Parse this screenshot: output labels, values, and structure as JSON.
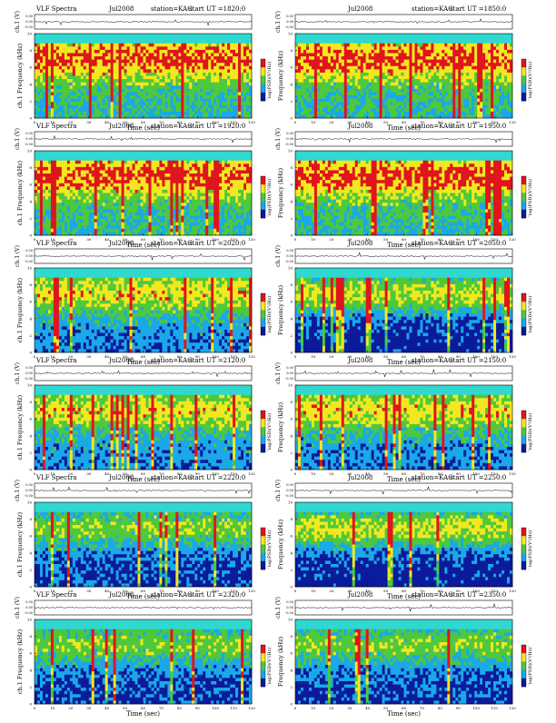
{
  "document": {
    "colors": {
      "cmap_low": "#0a1a9a",
      "cmap_lowmid": "#1aa8e8",
      "cmap_mid": "#4ec83c",
      "cmap_midhigh": "#f2e81e",
      "cmap_high": "#e0141c",
      "background_band": "#2fd8d0"
    }
  },
  "chart_data": [
    {
      "type": "heatmap",
      "title": "VLF Spectra",
      "date": "Jul2008",
      "station": "station=KAG",
      "start": "start UT =1820:0",
      "ch_label": "ch.1 (V)",
      "ch_ticks": [
        "0.50",
        "0.00",
        "-0.50"
      ],
      "ylabel": "ch.1 Frequency (kHz)",
      "yticks": [
        "0",
        "2",
        "4",
        "6",
        "8",
        "10"
      ],
      "xlabel": "Time (sec)",
      "xticks": [
        "0",
        "10",
        "20",
        "30",
        "40",
        "50",
        "60",
        "70",
        "80",
        "90",
        "100",
        "110",
        "120"
      ],
      "cbar_label": "log(PSD)(V²/Hz)",
      "cbar_ticks": [
        "-",
        "-"
      ],
      "xlim": [
        0,
        120
      ],
      "ylim": [
        0,
        10
      ],
      "intensity": "high"
    },
    {
      "type": "heatmap",
      "title": "",
      "date": "Jul2008",
      "station": "station=KAG",
      "start": "start UT =1850:0",
      "ch_label": "ch.1 (V)",
      "ch_ticks": [
        "0.50",
        "0.00",
        "-0.50"
      ],
      "ylabel": "Frequency (kHz)",
      "yticks": [
        "0",
        "2",
        "4",
        "6",
        "8",
        "10"
      ],
      "xlabel": "Time (sec)",
      "xticks": [
        "0",
        "10",
        "20",
        "30",
        "40",
        "50",
        "60",
        "70",
        "80",
        "90",
        "100",
        "110",
        "120"
      ],
      "cbar_label": "log(PSD)(V²/Hz)",
      "cbar_ticks": [
        "-",
        "-"
      ],
      "xlim": [
        0,
        120
      ],
      "ylim": [
        0,
        10
      ],
      "intensity": "high"
    },
    {
      "type": "heatmap",
      "title": "VLF Spectra",
      "date": "Jul2008",
      "station": "station=KAG",
      "start": "start UT =1920:0",
      "ch_label": "ch.1 (V)",
      "ch_ticks": [
        "0.50",
        "0.00",
        "-0.50"
      ],
      "ylabel": "ch.1 Frequency (kHz)",
      "yticks": [
        "0",
        "2",
        "4",
        "6",
        "8",
        "10"
      ],
      "xlabel": "Time (sec)",
      "xticks": [
        "0",
        "10",
        "20",
        "30",
        "40",
        "50",
        "60",
        "70",
        "80",
        "90",
        "100",
        "110",
        "120"
      ],
      "cbar_label": "log(PSD)(V²/Hz)",
      "cbar_ticks": [
        "-",
        "-"
      ],
      "xlim": [
        0,
        120
      ],
      "ylim": [
        0,
        10
      ],
      "intensity": "high"
    },
    {
      "type": "heatmap",
      "title": "",
      "date": "Jul2008",
      "station": "station=KAG",
      "start": "start UT =1950:0",
      "ch_label": "ch.1 (V)",
      "ch_ticks": [
        "0.50",
        "0.00",
        "-0.50"
      ],
      "ylabel": "Frequency (kHz)",
      "yticks": [
        "0",
        "2",
        "4",
        "6",
        "8",
        "10"
      ],
      "xlabel": "Time (sec)",
      "xticks": [
        "0",
        "10",
        "20",
        "30",
        "40",
        "50",
        "60",
        "70",
        "80",
        "90",
        "100",
        "110",
        "120"
      ],
      "cbar_label": "log(PSD)(V²/Hz)",
      "cbar_ticks": [
        "-",
        "-"
      ],
      "xlim": [
        0,
        120
      ],
      "ylim": [
        0,
        10
      ],
      "intensity": "high"
    },
    {
      "type": "heatmap",
      "title": "VLF Spectra",
      "date": "Jul2008",
      "station": "station=KAG",
      "start": "start UT =2020:0",
      "ch_label": "ch.1 (V)",
      "ch_ticks": [
        "0.50",
        "0.00",
        "-0.50"
      ],
      "ylabel": "ch.1 Frequency (kHz)",
      "yticks": [
        "0",
        "2",
        "4",
        "6",
        "8",
        "10"
      ],
      "xlabel": "Time (sec)",
      "xticks": [
        "0",
        "10",
        "20",
        "30",
        "40",
        "50",
        "60",
        "70",
        "80",
        "90",
        "100",
        "110",
        "120"
      ],
      "cbar_label": "log(PSD)(V²/Hz)",
      "cbar_ticks": [
        "-",
        "-"
      ],
      "xlim": [
        0,
        120
      ],
      "ylim": [
        0,
        10
      ],
      "intensity": "medium"
    },
    {
      "type": "heatmap",
      "title": "",
      "date": "Jul2008",
      "station": "station=KAG",
      "start": "start UT =2050:0",
      "ch_label": "ch.1 (V)",
      "ch_ticks": [
        "0.50",
        "0.00",
        "-0.50"
      ],
      "ylabel": "Frequency (kHz)",
      "yticks": [
        "0",
        "2",
        "4",
        "6",
        "8",
        "10"
      ],
      "xlabel": "Time (sec)",
      "xticks": [
        "0",
        "10",
        "20",
        "30",
        "40",
        "50",
        "60",
        "70",
        "80",
        "90",
        "100",
        "110",
        "120"
      ],
      "cbar_label": "log(PSD)(V²/Hz)",
      "cbar_ticks": [
        "-",
        "-"
      ],
      "xlim": [
        0,
        120
      ],
      "ylim": [
        0,
        10
      ],
      "intensity": "lowmid"
    },
    {
      "type": "heatmap",
      "title": "VLF Spectra",
      "date": "Jul2008",
      "station": "station=KAG",
      "start": "start UT =2120:0",
      "ch_label": "ch.1 (V)",
      "ch_ticks": [
        "0.50",
        "0.00",
        "-0.50"
      ],
      "ylabel": "ch.1 Frequency (kHz)",
      "yticks": [
        "0",
        "2",
        "4",
        "6",
        "8",
        "10"
      ],
      "xlabel": "Time (sec)",
      "xticks": [
        "0",
        "10",
        "20",
        "30",
        "40",
        "50",
        "60",
        "70",
        "80",
        "90",
        "100",
        "110",
        "120"
      ],
      "cbar_label": "log(PSD)(V²/Hz)",
      "cbar_ticks": [
        "-",
        "-"
      ],
      "xlim": [
        0,
        120
      ],
      "ylim": [
        0,
        10
      ],
      "intensity": "medium"
    },
    {
      "type": "heatmap",
      "title": "",
      "date": "Jul2008",
      "station": "station=KAG",
      "start": "start UT =2150:0",
      "ch_label": "ch.1 (V)",
      "ch_ticks": [
        "0.50",
        "0.00",
        "-0.50"
      ],
      "ylabel": "Frequency (kHz)",
      "yticks": [
        "0",
        "2",
        "4",
        "6",
        "8",
        "10"
      ],
      "xlabel": "Time (sec)",
      "xticks": [
        "0",
        "10",
        "20",
        "30",
        "40",
        "50",
        "60",
        "70",
        "80",
        "90",
        "100",
        "110",
        "120"
      ],
      "cbar_label": "log(PSD)(V²/Hz)",
      "cbar_ticks": [
        "-",
        "-"
      ],
      "xlim": [
        0,
        120
      ],
      "ylim": [
        0,
        10
      ],
      "intensity": "medium"
    },
    {
      "type": "heatmap",
      "title": "VLF Spectra",
      "date": "Jul2008",
      "station": "station=KAG",
      "start": "start UT =2220:0",
      "ch_label": "ch.1 (V)",
      "ch_ticks": [
        "0.50",
        "0.00",
        "-0.50"
      ],
      "ylabel": "ch.1 Frequency (kHz)",
      "yticks": [
        "0",
        "2",
        "4",
        "6",
        "8",
        "10"
      ],
      "xlabel": "Time (sec)",
      "xticks": [
        "0",
        "10",
        "20",
        "30",
        "40",
        "50",
        "60",
        "70",
        "80",
        "90",
        "100",
        "110",
        "120"
      ],
      "cbar_label": "log(PSD)(V²/Hz)",
      "cbar_ticks": [
        "-",
        "-"
      ],
      "xlim": [
        0,
        120
      ],
      "ylim": [
        0,
        10
      ],
      "intensity": "low"
    },
    {
      "type": "heatmap",
      "title": "",
      "date": "Jul2008",
      "station": "station=KAG",
      "start": "start UT =2250:0",
      "ch_label": "ch.1 (V)",
      "ch_ticks": [
        "0.50",
        "0.00",
        "-0.50"
      ],
      "ylabel": "Frequency (kHz)",
      "yticks": [
        "0",
        "2",
        "4",
        "6",
        "8",
        "10"
      ],
      "xlabel": "Time (sec)",
      "xticks": [
        "0",
        "10",
        "20",
        "30",
        "40",
        "50",
        "60",
        "70",
        "80",
        "90",
        "100",
        "110",
        "120"
      ],
      "cbar_label": "log(PSD)(V²/Hz)",
      "cbar_ticks": [
        "-",
        "-"
      ],
      "xlim": [
        0,
        120
      ],
      "ylim": [
        0,
        10
      ],
      "intensity": "lowmid"
    },
    {
      "type": "heatmap",
      "title": "VLF Spectra",
      "date": "Jul2008",
      "station": "station=KAG",
      "start": "start UT =2320:0",
      "ch_label": "ch.1 (V)",
      "ch_ticks": [
        "0.50",
        "0.00",
        "-0.50"
      ],
      "ylabel": "ch.1 Frequency (kHz)",
      "yticks": [
        "0",
        "2",
        "4",
        "6",
        "8",
        "10"
      ],
      "xlabel": "Time (sec)",
      "xticks": [
        "0",
        "10",
        "20",
        "30",
        "40",
        "50",
        "60",
        "70",
        "80",
        "90",
        "100",
        "110",
        "120"
      ],
      "cbar_label": "log(PSD)(V²/Hz)",
      "cbar_ticks": [
        "-",
        "-"
      ],
      "xlim": [
        0,
        120
      ],
      "ylim": [
        0,
        10
      ],
      "intensity": "low"
    },
    {
      "type": "heatmap",
      "title": "",
      "date": "Jul2008",
      "station": "station=KAG",
      "start": "start UT =2350:0",
      "ch_label": "ch.1 (V)",
      "ch_ticks": [
        "0.50",
        "0.00",
        "-0.50"
      ],
      "ylabel": "Frequency (kHz)",
      "yticks": [
        "0",
        "2",
        "4",
        "6",
        "8",
        "10"
      ],
      "xlabel": "Time (sec)",
      "xticks": [
        "0",
        "10",
        "20",
        "30",
        "40",
        "50",
        "60",
        "70",
        "80",
        "90",
        "100",
        "110",
        "120"
      ],
      "cbar_label": "log(PSD)(V²/Hz)",
      "cbar_ticks": [
        "-",
        "-"
      ],
      "xlim": [
        0,
        120
      ],
      "ylim": [
        0,
        10
      ],
      "intensity": "low"
    }
  ]
}
